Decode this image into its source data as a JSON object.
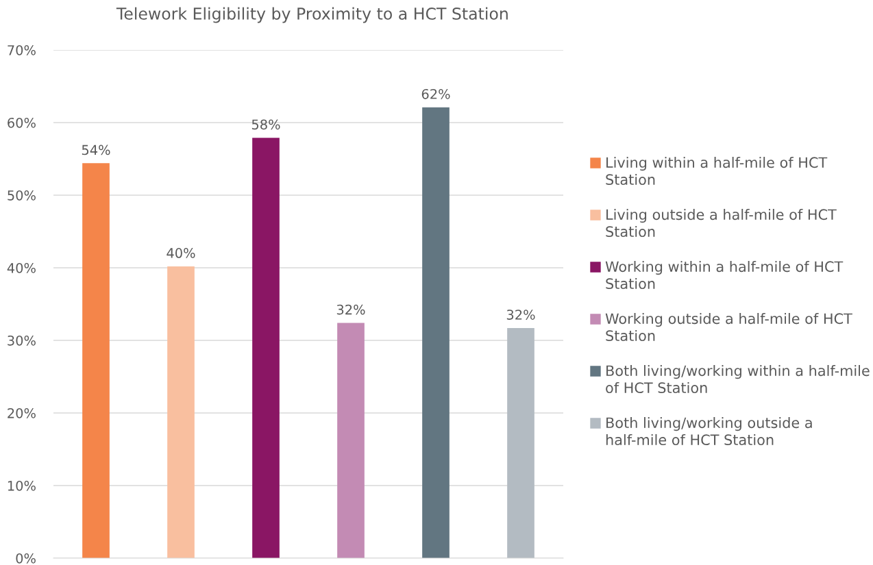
{
  "chart_data": {
    "type": "bar",
    "title": "Telework Eligibility by Proximity to a HCT Station",
    "categories": [
      null,
      null,
      null,
      null,
      null,
      null
    ],
    "series": [
      {
        "name": "Living within a half-mile of HCT Station",
        "color": "#f4854a",
        "values": [
          54.4,
          null,
          null,
          null,
          null,
          null
        ],
        "value_labels": [
          "54%",
          null,
          null,
          null,
          null,
          null
        ]
      },
      {
        "name": "Living outside a half-mile of HCT Station",
        "color": "#f9bf9f",
        "values": [
          null,
          40.2,
          null,
          null,
          null,
          null
        ],
        "value_labels": [
          null,
          "40%",
          null,
          null,
          null,
          null
        ]
      },
      {
        "name": "Working within a half-mile of HCT Station",
        "color": "#8a1664",
        "values": [
          null,
          null,
          57.9,
          null,
          null,
          null
        ],
        "value_labels": [
          null,
          null,
          "58%",
          null,
          null,
          null
        ]
      },
      {
        "name": "Working outside a half-mile of HCT Station",
        "color": "#c38bb4",
        "values": [
          null,
          null,
          null,
          32.4,
          null,
          null
        ],
        "value_labels": [
          null,
          null,
          null,
          "32%",
          null,
          null
        ]
      },
      {
        "name": "Both living/working within a half-mile of HCT Station",
        "color": "#627681",
        "values": [
          null,
          null,
          null,
          null,
          62.1,
          null
        ],
        "value_labels": [
          null,
          null,
          null,
          null,
          "62%",
          null
        ]
      },
      {
        "name": "Both living/working outside a half-mile of HCT Station",
        "color": "#b3bbc2",
        "values": [
          null,
          null,
          null,
          null,
          null,
          31.7
        ],
        "value_labels": [
          null,
          null,
          null,
          null,
          null,
          "32%"
        ]
      }
    ],
    "ylim": [
      0,
      70
    ],
    "yticks": [
      {
        "value": 0,
        "label": "0%"
      },
      {
        "value": 10,
        "label": "10%"
      },
      {
        "value": 20,
        "label": "20%"
      },
      {
        "value": 30,
        "label": "30%"
      },
      {
        "value": 40,
        "label": "40%"
      },
      {
        "value": 50,
        "label": "50%"
      },
      {
        "value": 60,
        "label": "60%"
      },
      {
        "value": 70,
        "label": "70%"
      }
    ],
    "grid": "y",
    "legend": "right",
    "tick_labels": "y"
  }
}
